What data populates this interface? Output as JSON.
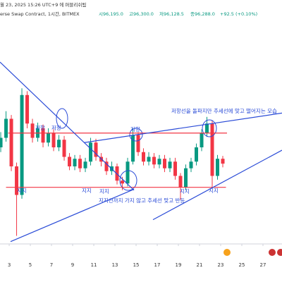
{
  "header": {
    "line1": "월 23, 2025 15:26 UTC+9 에 퍼블리쉬됨",
    "line2": "erse Swap Contract, 1시간, BITMEX",
    "open": "시96,195.0",
    "high": "고96,300.0",
    "low": "저96,128.5",
    "close": "종96,288.0",
    "change": "+92.5 (+0.10%)"
  },
  "annotations": {
    "resistance_left_1": "저항",
    "resistance_left_2": "저항",
    "resistance_mid": "저항",
    "breakout_note": "저항선을 돌파지만 추세선에 맞고 떨어지는 모습",
    "support_1": "지지",
    "support_2": "지지",
    "support_3": "지지",
    "support_4": "지지",
    "support_5": "지지",
    "bounce_note": "지지선까지 가지 않고 추세선 맞고 반등"
  },
  "chart_data": {
    "type": "candlestick",
    "up_color": "#089981",
    "down_color": "#f23645",
    "x": [
      2.2,
      2.7,
      3.2,
      3.7,
      4.2,
      4.7,
      5.2,
      5.7,
      6.2,
      6.7,
      7.2,
      7.7,
      8.2,
      8.7,
      9.2,
      9.7,
      10.2,
      10.7,
      11.2,
      11.7,
      12.2,
      12.7,
      13.2,
      13.7,
      14.2,
      14.7,
      15.2,
      15.7,
      16.2,
      16.7,
      17.2,
      17.7,
      18.2,
      18.7,
      19.2,
      19.7,
      20.2,
      20.7,
      21.2,
      21.7,
      22.2,
      22.7,
      23.2
    ],
    "open": [
      98000,
      99000,
      101000,
      96000,
      93000,
      103500,
      100500,
      99000,
      100000,
      98500,
      99500,
      98000,
      98800,
      97000,
      96000,
      96800,
      95800,
      96500,
      98500,
      97000,
      96500,
      95500,
      96000,
      94500,
      94200,
      96500,
      99300,
      97500,
      96500,
      97000,
      96200,
      96800,
      95800,
      96500,
      95000,
      93800,
      95800,
      96500,
      98000,
      99500,
      100500,
      95000,
      96800
    ],
    "high": [
      99600,
      101800,
      101400,
      96400,
      104200,
      103900,
      101000,
      100600,
      100400,
      100000,
      99900,
      99300,
      99200,
      97400,
      97200,
      97200,
      96900,
      99000,
      98900,
      97400,
      96900,
      96500,
      96300,
      94900,
      96900,
      100000,
      99600,
      97900,
      97500,
      97400,
      97200,
      97200,
      96900,
      96900,
      95300,
      96200,
      96900,
      98400,
      99900,
      101200,
      100800,
      97200,
      97100
    ],
    "low": [
      97500,
      98600,
      95500,
      88700,
      92600,
      100000,
      98500,
      98600,
      98000,
      98100,
      97600,
      97600,
      96600,
      95600,
      95600,
      95400,
      95400,
      96100,
      96600,
      96000,
      95100,
      95100,
      94100,
      93500,
      93900,
      96200,
      97100,
      96100,
      96100,
      95800,
      95800,
      95400,
      95400,
      94600,
      92500,
      93500,
      95400,
      96100,
      97600,
      99100,
      93800,
      94600,
      95900
    ],
    "close": [
      99000,
      101000,
      96000,
      93000,
      103500,
      100500,
      99000,
      100000,
      98500,
      99500,
      98000,
      98800,
      97000,
      96000,
      96800,
      95800,
      96500,
      98500,
      97000,
      96500,
      95500,
      96000,
      94500,
      94200,
      96500,
      99300,
      97500,
      96500,
      97000,
      96200,
      96800,
      95800,
      96500,
      95000,
      93800,
      95800,
      96500,
      98000,
      99500,
      100500,
      95000,
      96800,
      96288
    ],
    "xlim": [
      2.13,
      28.8
    ],
    "xticks": [
      3,
      5,
      7,
      9,
      11,
      13,
      15,
      17,
      19,
      21,
      23,
      25,
      27
    ],
    "ylim": [
      88000,
      112000
    ],
    "levels": [
      {
        "color": "#f23645",
        "price": 99500,
        "from": 2.9,
        "to": 23.6
      },
      {
        "color": "#f23645",
        "price": 93800,
        "from": 2.7,
        "to": 23.5
      }
    ],
    "trendlines": [
      {
        "color": "#2a4bd7",
        "x": [
          2.13,
          14.8
        ],
        "y": [
          106960,
          93500
        ]
      },
      {
        "color": "#2a4bd7",
        "x": [
          3.13,
          14.8
        ],
        "y": [
          88100,
          93600
        ]
      },
      {
        "color": "#2a4bd7",
        "x": [
          10.1,
          28.8
        ],
        "y": [
          98500,
          101600
        ]
      },
      {
        "color": "#2a4bd7",
        "x": [
          16.6,
          28.8
        ],
        "y": [
          90400,
          97700
        ]
      }
    ]
  }
}
